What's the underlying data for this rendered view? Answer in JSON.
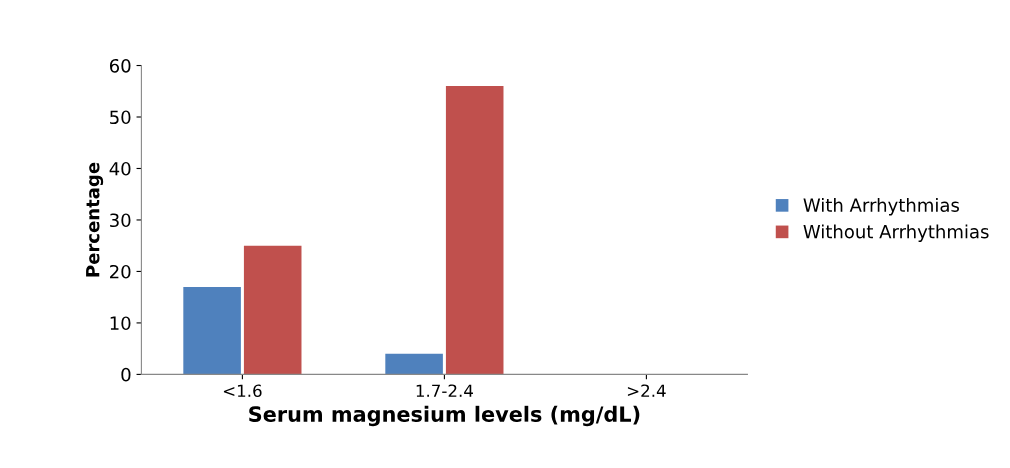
{
  "chart_data": {
    "type": "bar",
    "xlabel": "Serum magnesium levels (mg/dL)",
    "ylabel": "Percentage",
    "categories": [
      "<1.6",
      "1.7-2.4",
      ">2.4"
    ],
    "series": [
      {
        "name": "With Arrhythmias",
        "color": "#4f81bd",
        "values": [
          17,
          4,
          0
        ]
      },
      {
        "name": "Without Arrhythmias",
        "color": "#c0504d",
        "values": [
          25,
          56,
          0
        ]
      }
    ],
    "ylim": [
      0,
      60
    ],
    "yticks": [
      0,
      10,
      20,
      30,
      40,
      50,
      60
    ],
    "grid": false,
    "legend": "right"
  }
}
